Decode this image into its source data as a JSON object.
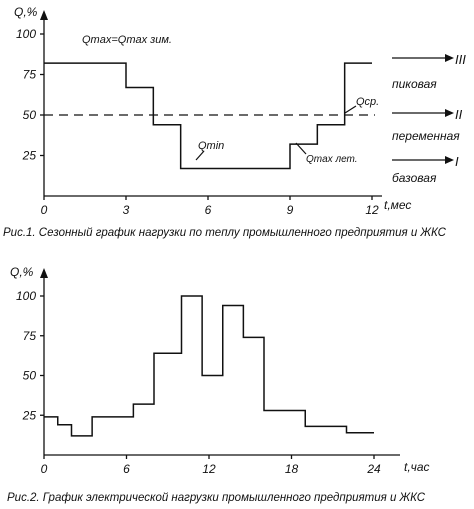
{
  "chart_data": [
    {
      "type": "line",
      "step": true,
      "title": "",
      "caption": "Рис.1. Сезонный график нагрузки по теплу промышленного предприятия и ЖКС",
      "xlabel": "t,мес",
      "ylabel": "Q,%",
      "xlim": [
        0,
        12
      ],
      "ylim": [
        0,
        100
      ],
      "xticks": [
        0,
        3,
        6,
        9,
        12
      ],
      "yticks": [
        25,
        50,
        75,
        100
      ],
      "x": [
        0,
        3,
        4,
        5,
        9,
        10,
        11,
        12
      ],
      "y": [
        82,
        67,
        44,
        17,
        32,
        44,
        82,
        82
      ],
      "average_line": {
        "value": 50,
        "label": "Qср."
      },
      "annotations": [
        {
          "text": "Qmax=Qmax зим.",
          "x": 1.5,
          "y": 82
        },
        {
          "text": "Qmin",
          "x": 6.2,
          "y": 17
        },
        {
          "text": "Qmax лет.",
          "x": 9.3,
          "y": 32
        }
      ],
      "zones": [
        {
          "numeral": "III",
          "label": "пиковая"
        },
        {
          "numeral": "II",
          "label": "переменная"
        },
        {
          "numeral": "I",
          "label": "базовая"
        }
      ],
      "grid": false
    },
    {
      "type": "line",
      "step": true,
      "title": "",
      "caption": "Рис.2. График электрической нагрузки промышленного предприятия и ЖКС",
      "xlabel": "t,час",
      "ylabel": "Q,%",
      "xlim": [
        0,
        24
      ],
      "ylim": [
        0,
        100
      ],
      "xticks": [
        0,
        6,
        12,
        18,
        24
      ],
      "yticks": [
        25,
        50,
        75,
        100
      ],
      "x": [
        0,
        1,
        2,
        3.5,
        6.5,
        8,
        10,
        11.5,
        13,
        14.5,
        16,
        19,
        22,
        24
      ],
      "y": [
        24,
        19,
        12,
        24,
        32,
        64,
        100,
        50,
        94,
        74,
        28,
        18,
        14,
        14
      ],
      "grid": false
    }
  ]
}
